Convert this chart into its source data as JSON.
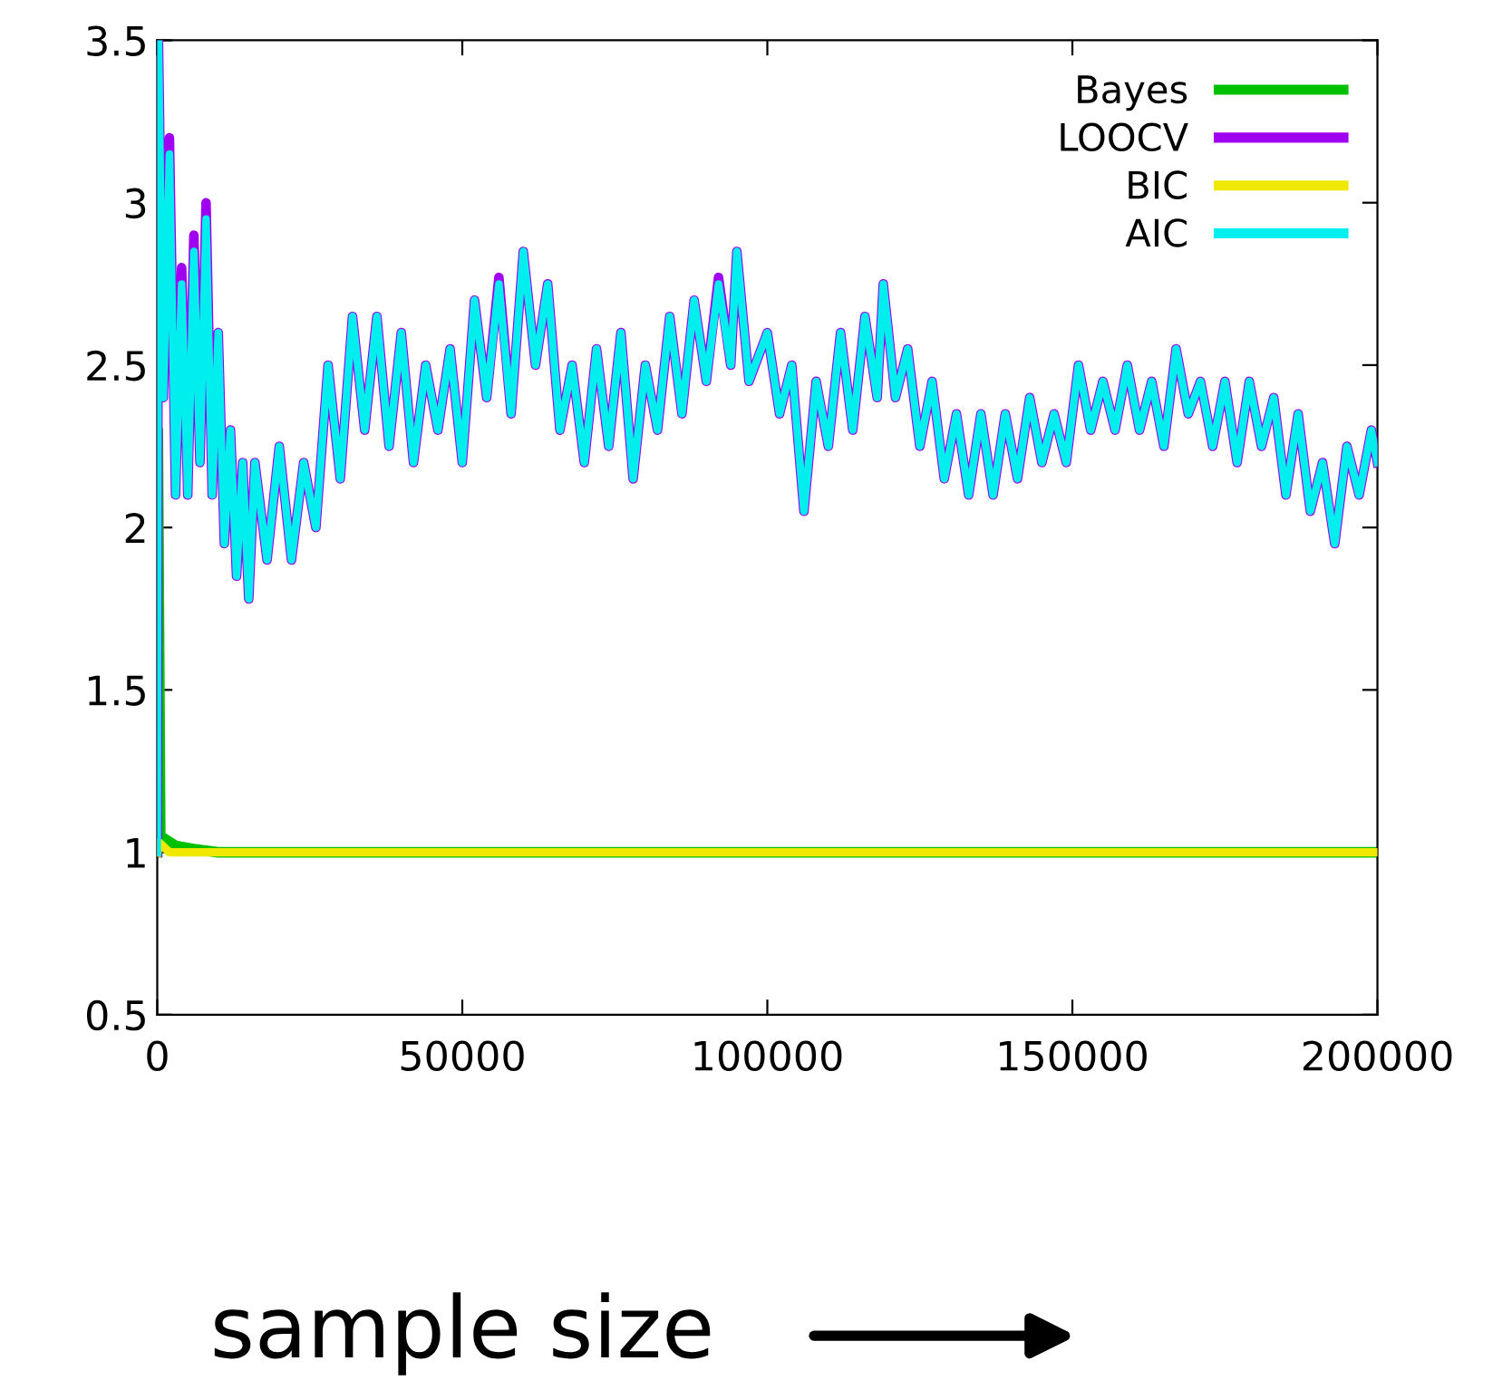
{
  "chart_data": {
    "type": "line",
    "xlabel": "sample size",
    "xlim": [
      0,
      200000
    ],
    "xticks": [
      0,
      50000,
      100000,
      150000,
      200000
    ],
    "ylim": [
      0.5,
      3.5
    ],
    "yticks": [
      0.5,
      1,
      1.5,
      2,
      2.5,
      3,
      3.5
    ],
    "grid": false,
    "legend": "top right",
    "line_style": "solid",
    "marker": "none",
    "series": [
      {
        "name": "Bayes",
        "color": "#00c000",
        "x": [
          0,
          100,
          500,
          3000,
          6000,
          10000,
          40000,
          200000
        ],
        "values": [
          1.0,
          2.3,
          1.05,
          1.02,
          1.01,
          1.0,
          1.0,
          1.0
        ]
      },
      {
        "name": "LOOCV",
        "color": "#a000f0",
        "x": [
          0,
          200,
          1000,
          2000,
          3000,
          4000,
          5000,
          6000,
          7000,
          8000,
          9000,
          10000,
          11000,
          12000,
          13000,
          14000,
          15000,
          16000,
          18000,
          20000,
          22000,
          24000,
          26000,
          28000,
          30000,
          32000,
          34000,
          36000,
          38000,
          40000,
          42000,
          44000,
          46000,
          48000,
          50000,
          52000,
          54000,
          56000,
          58000,
          60000,
          62000,
          64000,
          66000,
          68000,
          70000,
          72000,
          74000,
          76000,
          78000,
          80000,
          82000,
          84000,
          86000,
          88000,
          90000,
          92000,
          94000,
          95000,
          97000,
          100000,
          102000,
          104000,
          106000,
          108000,
          110000,
          112000,
          114000,
          116000,
          118000,
          119000,
          121000,
          123000,
          125000,
          127000,
          129000,
          131000,
          133000,
          135000,
          137000,
          139000,
          141000,
          143000,
          145000,
          147000,
          149000,
          151000,
          153000,
          155000,
          157000,
          159000,
          161000,
          163000,
          165000,
          167000,
          169000,
          171000,
          173000,
          175000,
          177000,
          179000,
          181000,
          183000,
          185000,
          187000,
          189000,
          191000,
          193000,
          195000,
          197000,
          199000,
          200000
        ],
        "values": [
          1.0,
          3.5,
          2.4,
          3.2,
          2.1,
          2.8,
          2.1,
          2.9,
          2.2,
          3.0,
          2.1,
          2.6,
          1.95,
          2.3,
          1.85,
          2.2,
          1.78,
          2.2,
          1.9,
          2.25,
          1.9,
          2.2,
          2.0,
          2.5,
          2.15,
          2.65,
          2.3,
          2.65,
          2.25,
          2.6,
          2.2,
          2.5,
          2.3,
          2.55,
          2.2,
          2.7,
          2.4,
          2.77,
          2.35,
          2.85,
          2.5,
          2.75,
          2.3,
          2.5,
          2.2,
          2.55,
          2.25,
          2.6,
          2.15,
          2.5,
          2.3,
          2.65,
          2.35,
          2.7,
          2.45,
          2.77,
          2.5,
          2.85,
          2.45,
          2.6,
          2.35,
          2.5,
          2.05,
          2.45,
          2.25,
          2.6,
          2.3,
          2.65,
          2.4,
          2.75,
          2.4,
          2.55,
          2.25,
          2.45,
          2.15,
          2.35,
          2.1,
          2.35,
          2.1,
          2.35,
          2.15,
          2.4,
          2.2,
          2.35,
          2.2,
          2.5,
          2.3,
          2.45,
          2.3,
          2.5,
          2.3,
          2.45,
          2.25,
          2.55,
          2.35,
          2.45,
          2.25,
          2.45,
          2.2,
          2.45,
          2.25,
          2.4,
          2.1,
          2.35,
          2.05,
          2.2,
          1.95,
          2.25,
          2.1,
          2.3,
          2.2
        ]
      },
      {
        "name": "BIC",
        "color": "#f0e800",
        "x": [
          0,
          300,
          2000,
          200000
        ],
        "values": [
          1.0,
          1.03,
          1.0,
          1.0
        ]
      },
      {
        "name": "AIC",
        "color": "#00eeee",
        "x": [
          0,
          200,
          1000,
          2000,
          3000,
          4000,
          5000,
          6000,
          7000,
          8000,
          9000,
          10000,
          11000,
          12000,
          13000,
          14000,
          15000,
          16000,
          18000,
          20000,
          22000,
          24000,
          26000,
          28000,
          30000,
          32000,
          34000,
          36000,
          38000,
          40000,
          42000,
          44000,
          46000,
          48000,
          50000,
          52000,
          54000,
          56000,
          58000,
          60000,
          62000,
          64000,
          66000,
          68000,
          70000,
          72000,
          74000,
          76000,
          78000,
          80000,
          82000,
          84000,
          86000,
          88000,
          90000,
          92000,
          94000,
          95000,
          97000,
          100000,
          102000,
          104000,
          106000,
          108000,
          110000,
          112000,
          114000,
          116000,
          118000,
          119000,
          121000,
          123000,
          125000,
          127000,
          129000,
          131000,
          133000,
          135000,
          137000,
          139000,
          141000,
          143000,
          145000,
          147000,
          149000,
          151000,
          153000,
          155000,
          157000,
          159000,
          161000,
          163000,
          165000,
          167000,
          169000,
          171000,
          173000,
          175000,
          177000,
          179000,
          181000,
          183000,
          185000,
          187000,
          189000,
          191000,
          193000,
          195000,
          197000,
          199000,
          200000
        ],
        "values": [
          1.0,
          3.5,
          2.4,
          3.15,
          2.1,
          2.75,
          2.1,
          2.85,
          2.2,
          2.95,
          2.1,
          2.6,
          1.95,
          2.3,
          1.85,
          2.2,
          1.78,
          2.2,
          1.9,
          2.25,
          1.9,
          2.2,
          2.0,
          2.5,
          2.15,
          2.65,
          2.3,
          2.65,
          2.25,
          2.6,
          2.2,
          2.5,
          2.3,
          2.55,
          2.2,
          2.7,
          2.4,
          2.75,
          2.35,
          2.85,
          2.5,
          2.75,
          2.3,
          2.5,
          2.2,
          2.55,
          2.25,
          2.6,
          2.15,
          2.5,
          2.3,
          2.65,
          2.35,
          2.7,
          2.45,
          2.75,
          2.5,
          2.85,
          2.45,
          2.6,
          2.35,
          2.5,
          2.05,
          2.45,
          2.25,
          2.6,
          2.3,
          2.65,
          2.4,
          2.75,
          2.4,
          2.55,
          2.25,
          2.45,
          2.15,
          2.35,
          2.1,
          2.35,
          2.1,
          2.35,
          2.15,
          2.4,
          2.2,
          2.35,
          2.2,
          2.5,
          2.3,
          2.45,
          2.3,
          2.5,
          2.3,
          2.45,
          2.25,
          2.55,
          2.35,
          2.45,
          2.25,
          2.45,
          2.2,
          2.45,
          2.25,
          2.4,
          2.1,
          2.35,
          2.05,
          2.2,
          1.95,
          2.25,
          2.1,
          2.3,
          2.2
        ]
      }
    ]
  }
}
